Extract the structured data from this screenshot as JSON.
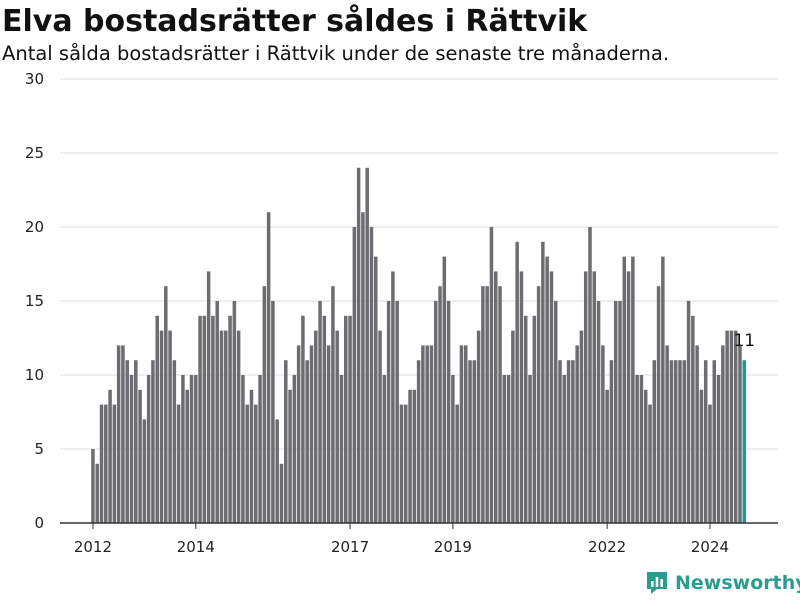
{
  "chart_data": {
    "type": "bar",
    "title": "Elva bostadsrätter såldes i Rättvik",
    "subtitle": "Antal sålda bostadsrätter i Rättvik under de senaste tre månaderna.",
    "x_tick_labels": [
      "2012",
      "2014",
      "2017",
      "2019",
      "2022",
      "2024"
    ],
    "y_ticks": [
      0,
      5,
      10,
      15,
      20,
      25,
      30
    ],
    "ylim": [
      0,
      30
    ],
    "grid": true,
    "last_value_label": "11",
    "colors": {
      "bar": "#6d6c70",
      "highlight": "#1f9a8f",
      "grid": "#dddddd",
      "axis": "#333333"
    },
    "values": [
      5,
      4,
      8,
      8,
      9,
      8,
      12,
      12,
      11,
      10,
      11,
      9,
      7,
      10,
      11,
      14,
      13,
      16,
      13,
      11,
      8,
      10,
      9,
      10,
      10,
      14,
      14,
      17,
      14,
      15,
      13,
      13,
      14,
      15,
      13,
      10,
      8,
      9,
      8,
      10,
      16,
      21,
      15,
      7,
      4,
      11,
      9,
      10,
      12,
      14,
      11,
      12,
      13,
      15,
      14,
      12,
      16,
      13,
      10,
      14,
      14,
      20,
      24,
      21,
      24,
      20,
      18,
      13,
      10,
      15,
      17,
      15,
      8,
      8,
      9,
      9,
      11,
      12,
      12,
      12,
      15,
      16,
      18,
      15,
      10,
      8,
      12,
      12,
      11,
      11,
      13,
      16,
      16,
      20,
      17,
      16,
      10,
      10,
      13,
      19,
      17,
      14,
      10,
      14,
      16,
      19,
      18,
      17,
      15,
      11,
      10,
      11,
      11,
      12,
      13,
      17,
      20,
      17,
      15,
      12,
      9,
      11,
      15,
      15,
      18,
      17,
      18,
      10,
      10,
      9,
      8,
      11,
      16,
      18,
      12,
      11,
      11,
      11,
      11,
      15,
      14,
      12,
      9,
      11,
      8,
      11,
      10,
      12,
      13,
      13,
      13,
      12,
      11
    ]
  },
  "brand": {
    "name": "Newsworthy",
    "icon": "bar-chart-logo-icon"
  }
}
